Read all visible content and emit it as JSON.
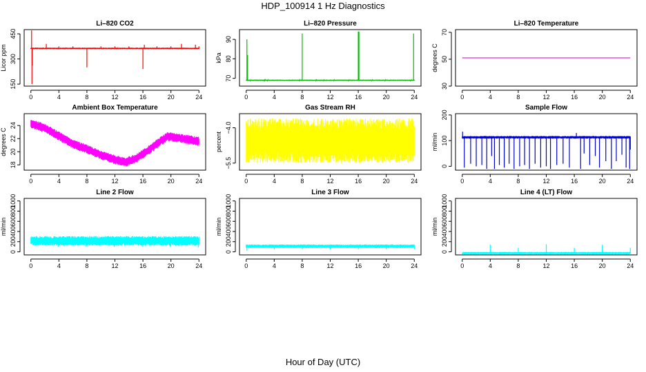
{
  "page": {
    "title": "HDP_100914  1 Hz Diagnostics",
    "xlabel": "Hour of Day (UTC)"
  },
  "chart_data": [
    {
      "id": "co2",
      "type": "line",
      "title": "Li–820 CO2",
      "ylabel": "Licor ppm",
      "color": "#ff0000",
      "xlim": [
        0,
        24
      ],
      "xticks": [
        0,
        4,
        8,
        12,
        16,
        20,
        24
      ],
      "xtick_labels": [
        "0",
        "4",
        "8",
        "12",
        "16",
        "20",
        "24"
      ],
      "ylim": [
        138,
        475
      ],
      "yticks": [
        150,
        300,
        450
      ],
      "ytick_labels": [
        "150",
        "300",
        "450"
      ],
      "baseline": [
        [
          0,
          363
        ],
        [
          24,
          363
        ]
      ],
      "noise": 4,
      "spikes": [
        [
          0.1,
          470
        ],
        [
          0.15,
          150
        ],
        [
          0.2,
          260
        ],
        [
          2.2,
          390
        ],
        [
          4,
          375
        ],
        [
          6,
          375
        ],
        [
          8,
          250
        ],
        [
          10,
          375
        ],
        [
          12,
          375
        ],
        [
          14,
          375
        ],
        [
          16,
          240
        ],
        [
          16.2,
          385
        ],
        [
          18,
          375
        ],
        [
          20,
          375
        ],
        [
          21.5,
          390
        ],
        [
          23.5,
          385
        ],
        [
          24,
          375
        ]
      ]
    },
    {
      "id": "pressure",
      "type": "line",
      "title": "Li–820 Pressure",
      "ylabel": "kPa",
      "color": "#00bb00",
      "xlim": [
        0,
        24
      ],
      "xticks": [
        0,
        4,
        8,
        12,
        16,
        20,
        24
      ],
      "xtick_labels": [
        "0",
        "4",
        "8",
        "12",
        "16",
        "20",
        "24"
      ],
      "ylim": [
        66,
        95
      ],
      "yticks": [
        70,
        80,
        90
      ],
      "ytick_labels": [
        "70",
        "80",
        "90"
      ],
      "baseline": [
        [
          0,
          69
        ],
        [
          24,
          69
        ]
      ],
      "noise": 0.3,
      "spikes": [
        [
          0.1,
          90
        ],
        [
          0.2,
          82
        ],
        [
          8,
          93
        ],
        [
          16,
          94
        ],
        [
          16.1,
          94
        ],
        [
          23.9,
          93
        ]
      ]
    },
    {
      "id": "temperature",
      "type": "line",
      "title": "Li–820 Temperature",
      "ylabel": "degrees C",
      "color": "#cc00cc",
      "xlim": [
        0,
        24
      ],
      "xticks": [
        0,
        4,
        8,
        12,
        16,
        20,
        24
      ],
      "xtick_labels": [
        "0",
        "4",
        "8",
        "12",
        "16",
        "20",
        "24"
      ],
      "ylim": [
        30,
        72
      ],
      "yticks": [
        30,
        50,
        70
      ],
      "ytick_labels": [
        "30",
        "50",
        "70"
      ],
      "baseline": [
        [
          0,
          51
        ],
        [
          24,
          51
        ]
      ],
      "noise": 0,
      "spikes": []
    },
    {
      "id": "ambient",
      "type": "line",
      "title": "Ambient Box Temperature",
      "ylabel": "degrees C",
      "color": "#ff00ff",
      "xlim": [
        0,
        24
      ],
      "xticks": [
        0,
        4,
        8,
        12,
        16,
        20,
        24
      ],
      "xtick_labels": [
        "0",
        "4",
        "8",
        "12",
        "16",
        "20",
        "24"
      ],
      "ylim": [
        17.2,
        25.8
      ],
      "yticks": [
        18,
        20,
        22,
        24
      ],
      "ytick_labels": [
        "18",
        "20",
        "22",
        "24"
      ],
      "baseline": [
        [
          0,
          24.3
        ],
        [
          2,
          23.6
        ],
        [
          4,
          22.4
        ],
        [
          6,
          21.2
        ],
        [
          8,
          20.4
        ],
        [
          10,
          19.5
        ],
        [
          12,
          18.8
        ],
        [
          13.5,
          18.4
        ],
        [
          15,
          19.0
        ],
        [
          16.5,
          20.0
        ],
        [
          18,
          21.2
        ],
        [
          19.5,
          22.3
        ],
        [
          21,
          22.1
        ],
        [
          24,
          21.6
        ]
      ],
      "noise": 0.7,
      "spikes": []
    },
    {
      "id": "rh",
      "type": "line",
      "title": "Gas Stream RH",
      "ylabel": "percent",
      "color": "#ffff00",
      "xlim": [
        0,
        24
      ],
      "xticks": [
        0,
        4,
        8,
        12,
        16,
        20,
        24
      ],
      "xtick_labels": [
        "0",
        "4",
        "8",
        "12",
        "16",
        "20",
        "24"
      ],
      "ylim": [
        -5.8,
        -3.4
      ],
      "yticks": [
        -5.5,
        -4.0
      ],
      "ytick_labels": [
        "−5.5",
        "−4.0"
      ],
      "baseline": [
        [
          0,
          -4.55
        ],
        [
          24,
          -4.55
        ]
      ],
      "noise": 0.95,
      "spikes": []
    },
    {
      "id": "sample",
      "type": "line",
      "title": "Sample Flow",
      "ylabel": "ml/min",
      "color": "#0000cc",
      "xlim": [
        0,
        24
      ],
      "xticks": [
        0,
        4,
        8,
        12,
        16,
        20,
        24
      ],
      "xtick_labels": [
        "0",
        "4",
        "8",
        "12",
        "16",
        "20",
        "24"
      ],
      "ylim": [
        -15,
        205
      ],
      "yticks": [
        0,
        100,
        200
      ],
      "ytick_labels": [
        "0",
        "100",
        "200"
      ],
      "baseline": [
        [
          0,
          113
        ],
        [
          24,
          113
        ]
      ],
      "noise": 5,
      "spikes": [
        [
          0.05,
          135
        ],
        [
          0.3,
          -5
        ],
        [
          1.2,
          10
        ],
        [
          2.0,
          0
        ],
        [
          2.8,
          5
        ],
        [
          3.5,
          -10
        ],
        [
          4.2,
          40
        ],
        [
          4.6,
          -10
        ],
        [
          5.3,
          5
        ],
        [
          6.0,
          -5
        ],
        [
          6.7,
          10
        ],
        [
          7.4,
          -10
        ],
        [
          8.2,
          0
        ],
        [
          8.9,
          5
        ],
        [
          9.6,
          -10
        ],
        [
          10.4,
          10
        ],
        [
          11.2,
          -5
        ],
        [
          12.0,
          0
        ],
        [
          12.6,
          -10
        ],
        [
          13.5,
          5
        ],
        [
          14.4,
          10
        ],
        [
          15.3,
          -5
        ],
        [
          16.3,
          130
        ],
        [
          16.9,
          -10
        ],
        [
          17.4,
          50
        ],
        [
          18.2,
          5
        ],
        [
          19.0,
          40
        ],
        [
          19.6,
          -5
        ],
        [
          20.5,
          20
        ],
        [
          21.3,
          -10
        ],
        [
          22.0,
          20
        ],
        [
          22.8,
          45
        ],
        [
          23.4,
          -5
        ],
        [
          23.9,
          -10
        ],
        [
          24,
          65
        ]
      ]
    },
    {
      "id": "line2",
      "type": "line",
      "title": "Line 2 Flow",
      "ylabel": "ml/min",
      "color": "#00ffff",
      "xlim": [
        0,
        24
      ],
      "xticks": [
        0,
        4,
        8,
        12,
        16,
        20,
        24
      ],
      "xtick_labels": [
        "0",
        "4",
        "8",
        "12",
        "16",
        "20",
        "24"
      ],
      "ylim": [
        -60,
        1050
      ],
      "yticks": [
        0,
        200,
        400,
        600,
        800,
        1000
      ],
      "ytick_labels": [
        "0",
        "200",
        "400",
        "600",
        "800",
        "1000"
      ],
      "baseline": [
        [
          0,
          215
        ],
        [
          24,
          215
        ]
      ],
      "noise": 95,
      "spikes": [
        [
          3.9,
          100
        ],
        [
          7.9,
          100
        ],
        [
          11.9,
          100
        ],
        [
          15.9,
          100
        ],
        [
          19.9,
          100
        ],
        [
          23.9,
          90
        ]
      ]
    },
    {
      "id": "line3",
      "type": "line",
      "title": "Line 3 Flow",
      "ylabel": "ml/min",
      "color": "#00ffff",
      "xlim": [
        0,
        24
      ],
      "xticks": [
        0,
        4,
        8,
        12,
        16,
        20,
        24
      ],
      "xtick_labels": [
        "0",
        "4",
        "8",
        "12",
        "16",
        "20",
        "24"
      ],
      "ylim": [
        -60,
        1050
      ],
      "yticks": [
        0,
        200,
        400,
        600,
        800,
        1000
      ],
      "ytick_labels": [
        "0",
        "200",
        "400",
        "600",
        "800",
        "1000"
      ],
      "baseline": [
        [
          0,
          110
        ],
        [
          24,
          110
        ]
      ],
      "noise": 35,
      "spikes": [
        [
          0.1,
          20
        ],
        [
          4,
          50
        ],
        [
          8,
          50
        ],
        [
          12,
          50
        ],
        [
          16,
          50
        ],
        [
          20,
          50
        ],
        [
          24,
          50
        ]
      ]
    },
    {
      "id": "line4",
      "type": "line",
      "title": "Line 4 (LT) Flow",
      "ylabel": "ml/min",
      "color": "#00ffff",
      "xlim": [
        0,
        24
      ],
      "xticks": [
        0,
        4,
        8,
        12,
        16,
        20,
        24
      ],
      "xtick_labels": [
        "0",
        "4",
        "8",
        "12",
        "16",
        "20",
        "24"
      ],
      "ylim": [
        -60,
        1050
      ],
      "yticks": [
        0,
        200,
        400,
        600,
        800,
        1000
      ],
      "ytick_labels": [
        "0",
        "200",
        "400",
        "600",
        "800",
        "1000"
      ],
      "baseline": [
        [
          0,
          -25
        ],
        [
          24,
          -25
        ]
      ],
      "noise": 6,
      "spikes": [
        [
          4,
          140
        ],
        [
          8,
          80
        ],
        [
          12,
          150
        ],
        [
          16,
          80
        ],
        [
          20,
          140
        ],
        [
          24,
          80
        ]
      ]
    }
  ]
}
